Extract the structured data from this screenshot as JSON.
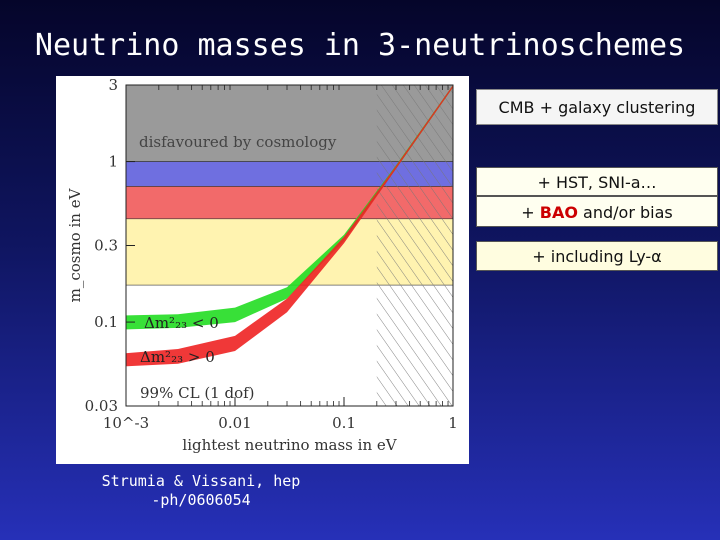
{
  "slide": {
    "title": "Neutrino masses in 3-neutrinoschemes",
    "caption": "Strumia & Vissani, hep\n-ph/0606054"
  },
  "labels": {
    "cmb": "CMB + galaxy clustering",
    "hst": "+ HST, SNI-a…",
    "bao_prefix": "+",
    "bao_word": "BAO",
    "bao_suffix": "and/or bias",
    "lya": "+ including Ly-α"
  },
  "colors": {
    "grey_band": "#9a9a9a",
    "blue_band": "#6f6fe0",
    "red_band": "#f26a6a",
    "yellow_band": "#fff3b0",
    "normal_hierarchy": "#ee2222",
    "inverted_hierarchy": "#22dd22"
  },
  "chart_data": {
    "type": "area",
    "xscale": "log",
    "yscale": "log",
    "xlim": [
      0.001,
      1
    ],
    "ylim": [
      0.03,
      3
    ],
    "xlabel": "lightest neutrino mass in eV",
    "ylabel": "m_cosmo in eV",
    "x_ticks": [
      {
        "value": 0.001,
        "label": "10^-3"
      },
      {
        "value": 0.01,
        "label": "0.01"
      },
      {
        "value": 0.1,
        "label": "0.1"
      },
      {
        "value": 1,
        "label": "1"
      }
    ],
    "y_ticks": [
      {
        "value": 3,
        "label": "3"
      },
      {
        "value": 1,
        "label": "1"
      },
      {
        "value": 0.3,
        "label": "0.3"
      },
      {
        "value": 0.1,
        "label": "0.1"
      },
      {
        "value": 0.03,
        "label": "0.03"
      }
    ],
    "bounds": [
      {
        "name": "disfavoured by cosmology",
        "from": 1.0,
        "to": 3.0
      },
      {
        "name": "CMB + galaxy clustering",
        "from": 0.7,
        "to": 1.0
      },
      {
        "name": "+ HST, SNI-a / + BAO and/or bias",
        "from": 0.44,
        "to": 0.7
      },
      {
        "name": "+ including Ly-α",
        "from": 0.17,
        "to": 0.44
      }
    ],
    "excluded_hatched_x_above": 0.2,
    "annotations": {
      "disfavoured": "disfavoured by cosmology",
      "inverted": "Δm²₂₃ < 0",
      "normal": "Δm²₂₃ > 0",
      "cl": "99% CL (1 dof)"
    },
    "series": [
      {
        "name": "Δm²₂₃ < 0",
        "x": [
          0.001,
          0.003,
          0.01,
          0.03,
          0.1,
          0.3,
          1
        ],
        "lower": [
          0.09,
          0.092,
          0.1,
          0.14,
          0.32,
          0.9,
          2.9
        ],
        "upper": [
          0.11,
          0.112,
          0.123,
          0.165,
          0.35,
          0.95,
          3.0
        ]
      },
      {
        "name": "Δm²₂₃ > 0",
        "x": [
          0.001,
          0.003,
          0.01,
          0.03,
          0.1,
          0.3,
          1
        ],
        "lower": [
          0.053,
          0.055,
          0.066,
          0.115,
          0.31,
          0.9,
          2.9
        ],
        "upper": [
          0.064,
          0.068,
          0.082,
          0.14,
          0.34,
          0.94,
          3.0
        ]
      }
    ]
  }
}
